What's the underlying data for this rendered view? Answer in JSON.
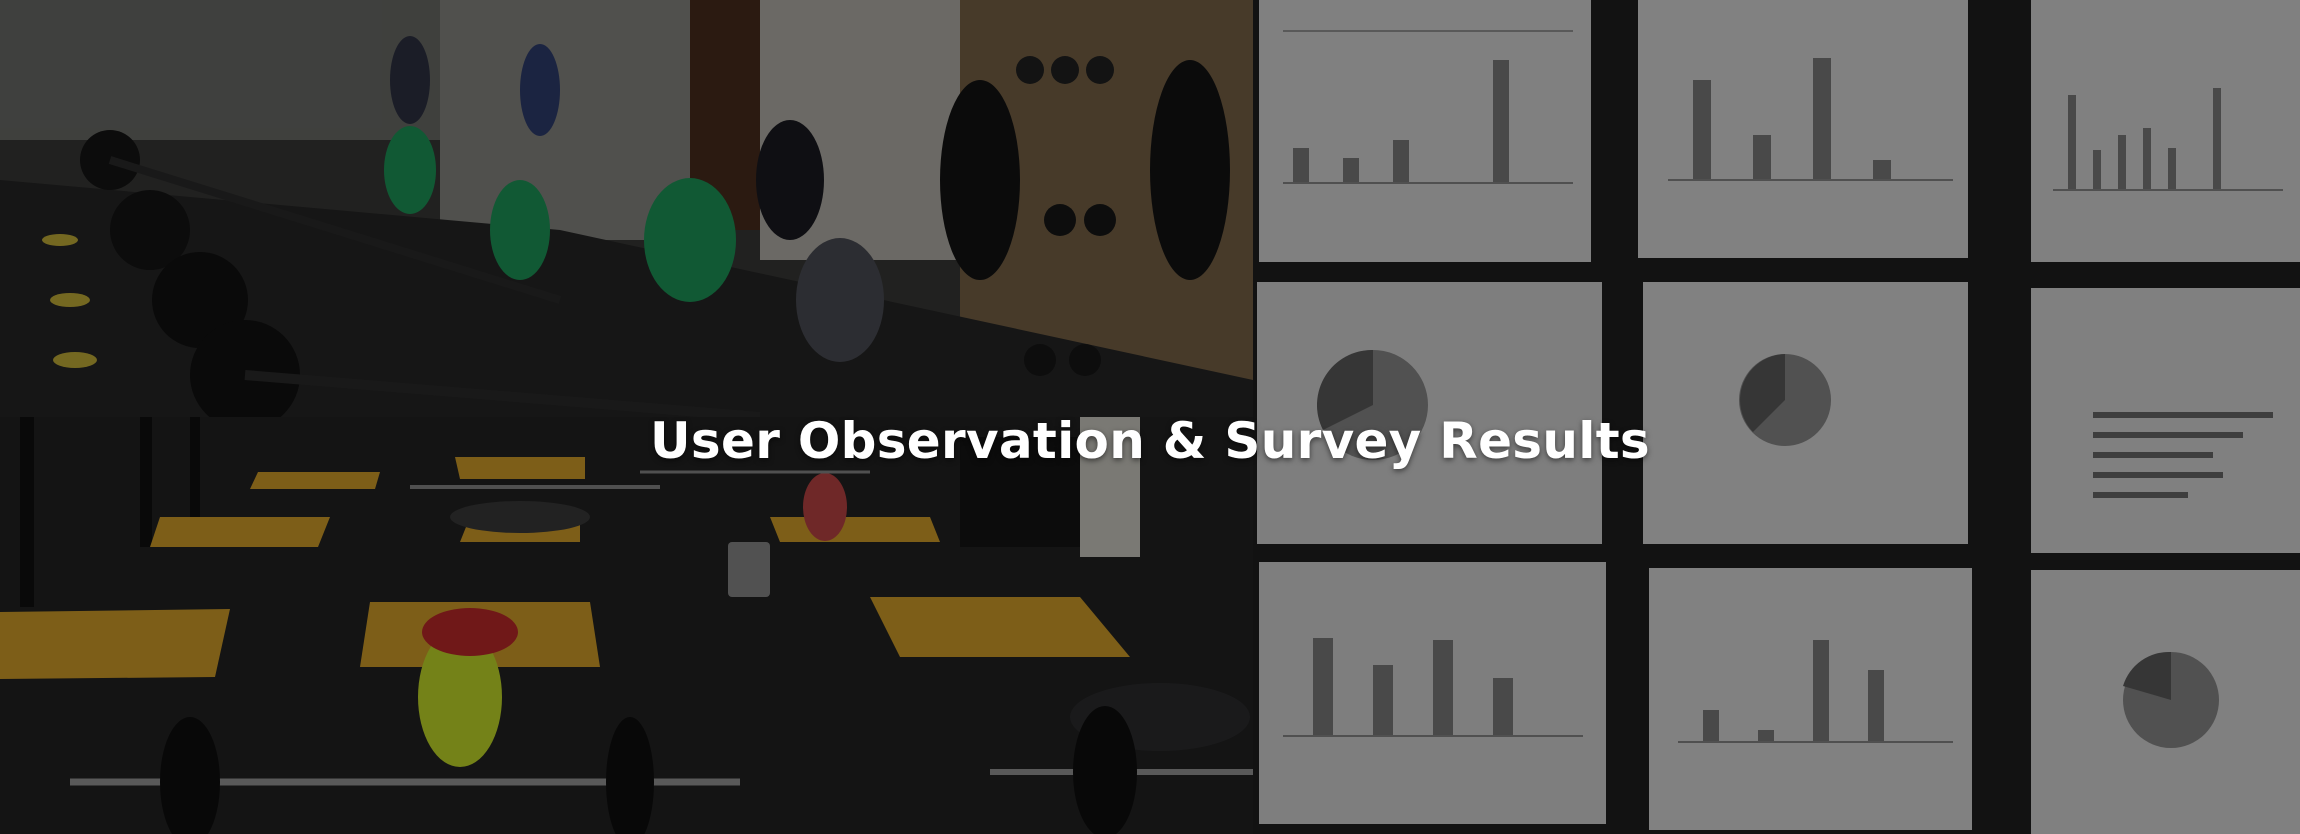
{
  "hero": {
    "title": "User Observation & Survey Results"
  },
  "colors": {
    "overlay": "#000000",
    "title_text": "#ffffff",
    "floor_mat": "#d8a22a",
    "shirt_green": "#1e9a5a",
    "shirt_yellow": "#c8e02a",
    "poster_paper": "#d8d8d8"
  },
  "photos": [
    {
      "name": "gym-rowing-photo"
    },
    {
      "name": "gym-floor-photo"
    },
    {
      "name": "survey-posters-photo"
    }
  ]
}
